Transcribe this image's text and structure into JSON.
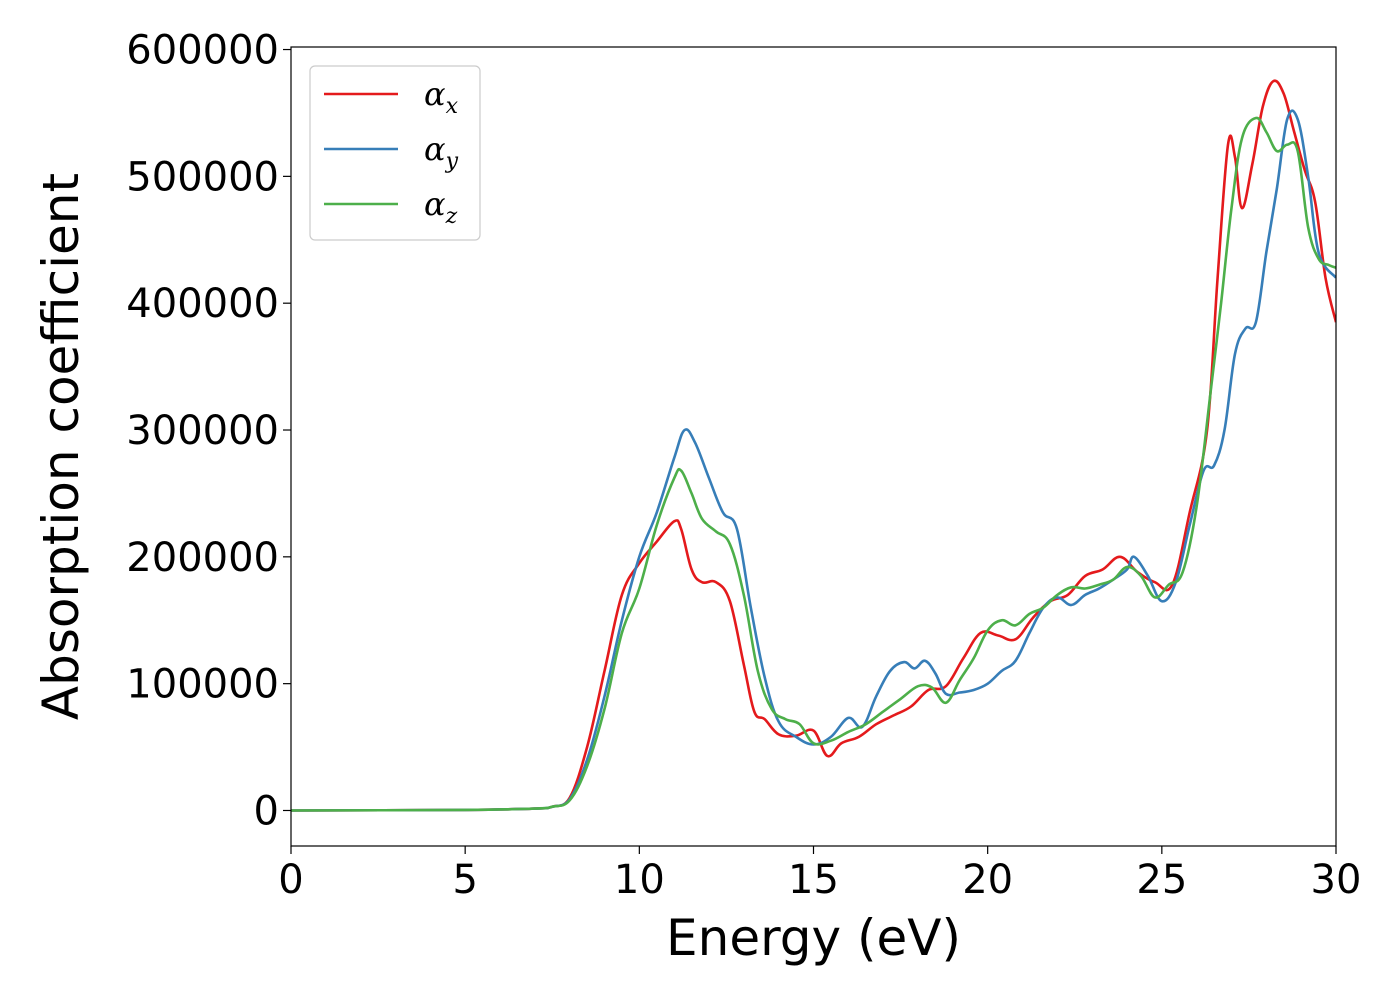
{
  "chart_data": {
    "type": "line",
    "xlabel": "Energy (eV)",
    "ylabel": "Absorption coefficient",
    "xlim": [
      0,
      30
    ],
    "ylim": [
      -28000,
      602000
    ],
    "x_ticks": [
      0,
      5,
      10,
      15,
      20,
      25,
      30
    ],
    "y_ticks": [
      0,
      100000,
      200000,
      300000,
      400000,
      500000,
      600000
    ],
    "grid": false,
    "legend_position": "top-left",
    "series": [
      {
        "name": "α_x",
        "label_base": "α",
        "label_sub": "x",
        "color": "#e41a1c",
        "x": [
          0,
          5,
          7,
          7.5,
          8,
          8.5,
          9,
          9.5,
          10,
          10.5,
          11,
          11.2,
          11.5,
          11.8,
          12.2,
          12.6,
          13,
          13.3,
          13.6,
          14,
          14.5,
          15,
          15.4,
          15.8,
          16.3,
          16.8,
          17.3,
          17.8,
          18.3,
          18.8,
          19.3,
          19.8,
          20.3,
          20.8,
          21.3,
          21.8,
          22.3,
          22.8,
          23.3,
          23.8,
          24.3,
          24.8,
          25.3,
          25.8,
          26.3,
          26.6,
          26.9,
          27.1,
          27.3,
          27.6,
          27.9,
          28.2,
          28.5,
          28.8,
          29.1,
          29.4,
          29.7,
          30
        ],
        "values": [
          0,
          500,
          1500,
          3000,
          10000,
          50000,
          110000,
          170000,
          195000,
          212000,
          228000,
          222000,
          190000,
          180000,
          180000,
          165000,
          115000,
          78000,
          72000,
          60000,
          59000,
          63000,
          43000,
          53000,
          58000,
          68000,
          75000,
          82000,
          95000,
          98000,
          120000,
          140000,
          138000,
          135000,
          152000,
          165000,
          170000,
          185000,
          190000,
          200000,
          188000,
          180000,
          178000,
          235000,
          300000,
          420000,
          525000,
          515000,
          475000,
          510000,
          555000,
          575000,
          565000,
          535000,
          505000,
          480000,
          420000,
          385000
        ]
      },
      {
        "name": "α_y",
        "label_base": "α",
        "label_sub": "y",
        "color": "#377eb8",
        "x": [
          0,
          5,
          7,
          7.5,
          8,
          8.5,
          9,
          9.5,
          10,
          10.5,
          11,
          11.3,
          11.6,
          12,
          12.4,
          12.8,
          13.2,
          13.6,
          14,
          14.5,
          15,
          15.5,
          16,
          16.4,
          16.8,
          17.2,
          17.6,
          17.9,
          18.2,
          18.5,
          18.8,
          19.2,
          19.6,
          20,
          20.4,
          20.8,
          21.2,
          21.6,
          22,
          22.4,
          22.8,
          23.2,
          23.6,
          24,
          24.2,
          24.6,
          25,
          25.4,
          25.8,
          26.2,
          26.5,
          26.8,
          27.1,
          27.4,
          27.7,
          28,
          28.3,
          28.6,
          28.9,
          29.2,
          29.5,
          30
        ],
        "values": [
          0,
          500,
          1500,
          3000,
          9000,
          40000,
          90000,
          150000,
          200000,
          235000,
          278000,
          300000,
          290000,
          262000,
          235000,
          222000,
          160000,
          105000,
          70000,
          58000,
          52000,
          58000,
          73000,
          66000,
          90000,
          110000,
          117000,
          112000,
          118000,
          108000,
          92000,
          93000,
          95000,
          100000,
          110000,
          118000,
          140000,
          160000,
          168000,
          162000,
          170000,
          175000,
          182000,
          190000,
          200000,
          185000,
          165000,
          180000,
          225000,
          268000,
          272000,
          300000,
          360000,
          380000,
          385000,
          440000,
          490000,
          545000,
          545000,
          500000,
          440000,
          420000
        ]
      },
      {
        "name": "α_z",
        "label_base": "α",
        "label_sub": "z",
        "color": "#4daf4a",
        "x": [
          0,
          5,
          7,
          7.5,
          8,
          8.5,
          9,
          9.5,
          10,
          10.5,
          11,
          11.2,
          11.5,
          11.8,
          12.2,
          12.6,
          13,
          13.4,
          13.8,
          14.2,
          14.6,
          15,
          15.5,
          16,
          16.5,
          17,
          17.5,
          18,
          18.4,
          18.8,
          19.2,
          19.6,
          20,
          20.4,
          20.8,
          21.2,
          21.6,
          22,
          22.4,
          22.8,
          23.2,
          23.6,
          24,
          24.4,
          24.8,
          25.2,
          25.6,
          26,
          26.4,
          26.7,
          27,
          27.3,
          27.7,
          28,
          28.3,
          28.6,
          28.9,
          29.2,
          29.5,
          29.8,
          30
        ],
        "values": [
          0,
          500,
          1500,
          3000,
          8000,
          35000,
          80000,
          140000,
          175000,
          225000,
          262000,
          268000,
          250000,
          230000,
          220000,
          210000,
          170000,
          110000,
          80000,
          72000,
          68000,
          53000,
          55000,
          62000,
          68000,
          78000,
          88000,
          98000,
          97000,
          85000,
          103000,
          120000,
          142000,
          150000,
          146000,
          155000,
          160000,
          170000,
          176000,
          175000,
          178000,
          182000,
          192000,
          185000,
          168000,
          178000,
          188000,
          240000,
          330000,
          400000,
          475000,
          530000,
          546000,
          535000,
          520000,
          525000,
          520000,
          460000,
          435000,
          430000,
          428000
        ]
      }
    ]
  }
}
